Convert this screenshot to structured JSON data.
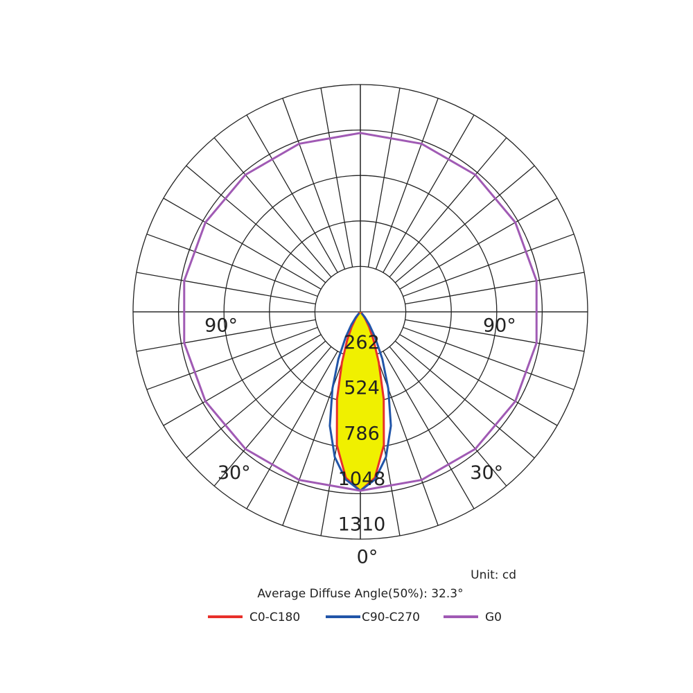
{
  "chart_data": {
    "type": "polar",
    "unit": "Unit: cd",
    "note": "Average Diffuse Angle(50%): 32.3°",
    "rlim": [
      0,
      1310
    ],
    "rticks": [
      262,
      524,
      786,
      1048,
      1310
    ],
    "angle_ticks": [
      {
        "value": 90,
        "label": "90°"
      },
      {
        "value": 30,
        "label": "30°"
      },
      {
        "value": 0,
        "label": "0°"
      }
    ],
    "series": [
      {
        "name": "C0-C180",
        "color": "#e8302a",
        "fill": "#f0f000",
        "angles": [
          -45,
          -40,
          -35,
          -30,
          -25,
          -20,
          -15,
          -10,
          -5,
          0,
          5,
          10,
          15,
          20,
          25,
          30,
          35,
          40,
          45
        ],
        "values": [
          5,
          20,
          50,
          100,
          180,
          310,
          520,
          780,
          960,
          1031,
          960,
          780,
          520,
          310,
          180,
          100,
          50,
          20,
          5
        ]
      },
      {
        "name": "C90-C270",
        "color": "#2155a8",
        "angles": [
          -45,
          -40,
          -35,
          -30,
          -25,
          -20,
          -15,
          -10,
          -5,
          0,
          5,
          10,
          15,
          20,
          25,
          30,
          35,
          40,
          45
        ],
        "values": [
          10,
          40,
          90,
          170,
          300,
          470,
          680,
          850,
          970,
          1031,
          970,
          850,
          680,
          470,
          300,
          170,
          90,
          40,
          10
        ]
      },
      {
        "name": "G0",
        "color": "#a05ab4",
        "angles": [
          0,
          20,
          40,
          60,
          80,
          100,
          120,
          140,
          160,
          180,
          200,
          220,
          240,
          260,
          280,
          300,
          320,
          340,
          360
        ],
        "values": [
          1031,
          1031,
          1031,
          1031,
          1031,
          1031,
          1031,
          1031,
          1031,
          1031,
          1031,
          1031,
          1031,
          1031,
          1031,
          1031,
          1031,
          1031,
          1031
        ]
      }
    ]
  }
}
